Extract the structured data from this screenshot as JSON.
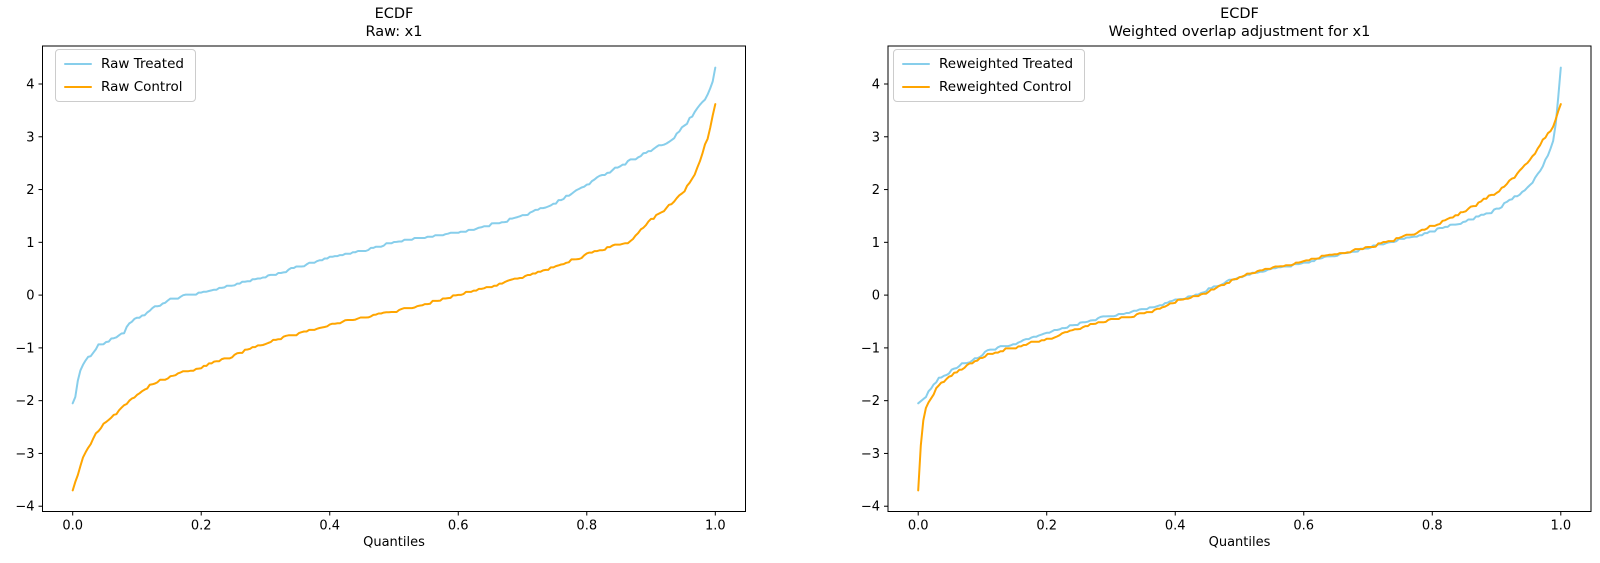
{
  "figure": {
    "background": "#ffffff"
  },
  "chart_data": [
    {
      "type": "line",
      "title_lines": [
        "ECDF",
        "Raw: x1"
      ],
      "xlabel": "Quantiles",
      "legend_position": "upper left",
      "grid": false,
      "xlim": [
        -0.047,
        1.047
      ],
      "ylim": [
        -4.1,
        4.72
      ],
      "xtick_values": [
        0,
        0.2,
        0.4,
        0.6,
        0.8,
        1.0
      ],
      "xticks": [
        "0.0",
        "0.2",
        "0.4",
        "0.6",
        "0.8",
        "1.0"
      ],
      "yticks": [
        -4,
        -3,
        -2,
        -1,
        0,
        1,
        2,
        3,
        4
      ],
      "series": [
        {
          "name": "Raw Treated",
          "color": "#87CEEB",
          "points": [
            [
              0,
              -2.05
            ],
            [
              0.005,
              -1.9
            ],
            [
              0.01,
              -1.44
            ],
            [
              0.02,
              -1.26
            ],
            [
              0.03,
              -1.1
            ],
            [
              0.04,
              -0.95
            ],
            [
              0.05,
              -0.9
            ],
            [
              0.06,
              -0.85
            ],
            [
              0.07,
              -0.77
            ],
            [
              0.08,
              -0.7
            ],
            [
              0.09,
              -0.52
            ],
            [
              0.11,
              -0.38
            ],
            [
              0.13,
              -0.22
            ],
            [
              0.15,
              -0.1
            ],
            [
              0.17,
              -0.03
            ],
            [
              0.2,
              0.04
            ],
            [
              0.23,
              0.13
            ],
            [
              0.26,
              0.22
            ],
            [
              0.3,
              0.33
            ],
            [
              0.33,
              0.45
            ],
            [
              0.36,
              0.56
            ],
            [
              0.4,
              0.7
            ],
            [
              0.44,
              0.8
            ],
            [
              0.48,
              0.93
            ],
            [
              0.5,
              1.0
            ],
            [
              0.54,
              1.07
            ],
            [
              0.58,
              1.14
            ],
            [
              0.6,
              1.18
            ],
            [
              0.64,
              1.29
            ],
            [
              0.68,
              1.43
            ],
            [
              0.7,
              1.5
            ],
            [
              0.73,
              1.64
            ],
            [
              0.76,
              1.8
            ],
            [
              0.79,
              2.02
            ],
            [
              0.83,
              2.31
            ],
            [
              0.87,
              2.56
            ],
            [
              0.91,
              2.8
            ],
            [
              0.93,
              2.91
            ],
            [
              0.95,
              3.18
            ],
            [
              0.96,
              3.33
            ],
            [
              0.98,
              3.64
            ],
            [
              0.99,
              3.85
            ],
            [
              0.997,
              4.08
            ],
            [
              1,
              4.31
            ]
          ]
        },
        {
          "name": "Raw Control",
          "color": "#FFA500",
          "points": [
            [
              0,
              -3.7
            ],
            [
              0.005,
              -3.5
            ],
            [
              0.01,
              -3.35
            ],
            [
              0.015,
              -3.07
            ],
            [
              0.03,
              -2.76
            ],
            [
              0.035,
              -2.62
            ],
            [
              0.05,
              -2.42
            ],
            [
              0.065,
              -2.27
            ],
            [
              0.08,
              -2.09
            ],
            [
              0.095,
              -1.93
            ],
            [
              0.11,
              -1.78
            ],
            [
              0.14,
              -1.6
            ],
            [
              0.16,
              -1.5
            ],
            [
              0.18,
              -1.44
            ],
            [
              0.2,
              -1.36
            ],
            [
              0.22,
              -1.28
            ],
            [
              0.24,
              -1.21
            ],
            [
              0.26,
              -1.1
            ],
            [
              0.28,
              -1.0
            ],
            [
              0.3,
              -0.92
            ],
            [
              0.33,
              -0.8
            ],
            [
              0.36,
              -0.7
            ],
            [
              0.4,
              -0.57
            ],
            [
              0.44,
              -0.45
            ],
            [
              0.48,
              -0.36
            ],
            [
              0.5,
              -0.32
            ],
            [
              0.54,
              -0.2
            ],
            [
              0.58,
              -0.07
            ],
            [
              0.6,
              0.0
            ],
            [
              0.64,
              0.12
            ],
            [
              0.68,
              0.26
            ],
            [
              0.7,
              0.33
            ],
            [
              0.73,
              0.45
            ],
            [
              0.76,
              0.58
            ],
            [
              0.79,
              0.72
            ],
            [
              0.82,
              0.85
            ],
            [
              0.85,
              0.95
            ],
            [
              0.87,
              1.02
            ],
            [
              0.88,
              1.18
            ],
            [
              0.9,
              1.42
            ],
            [
              0.92,
              1.6
            ],
            [
              0.94,
              1.82
            ],
            [
              0.96,
              2.1
            ],
            [
              0.97,
              2.35
            ],
            [
              0.98,
              2.7
            ],
            [
              0.99,
              3.05
            ],
            [
              0.995,
              3.35
            ],
            [
              1,
              3.62
            ]
          ]
        }
      ]
    },
    {
      "type": "line",
      "title_lines": [
        "ECDF",
        "Weighted overlap adjustment for x1"
      ],
      "xlabel": "Quantiles",
      "legend_position": "upper left",
      "grid": false,
      "xlim": [
        -0.047,
        1.047
      ],
      "ylim": [
        -4.1,
        4.72
      ],
      "xtick_values": [
        0,
        0.2,
        0.4,
        0.6,
        0.8,
        1.0
      ],
      "xticks": [
        "0.0",
        "0.2",
        "0.4",
        "0.6",
        "0.8",
        "1.0"
      ],
      "yticks": [
        -4,
        -3,
        -2,
        -1,
        0,
        1,
        2,
        3,
        4
      ],
      "series": [
        {
          "name": "Reweighted Treated",
          "color": "#87CEEB",
          "points": [
            [
              0,
              -2.05
            ],
            [
              0.01,
              -1.95
            ],
            [
              0.02,
              -1.75
            ],
            [
              0.03,
              -1.6
            ],
            [
              0.05,
              -1.45
            ],
            [
              0.07,
              -1.3
            ],
            [
              0.09,
              -1.2
            ],
            [
              0.11,
              -1.05
            ],
            [
              0.13,
              -0.98
            ],
            [
              0.15,
              -0.92
            ],
            [
              0.17,
              -0.85
            ],
            [
              0.2,
              -0.73
            ],
            [
              0.23,
              -0.62
            ],
            [
              0.26,
              -0.5
            ],
            [
              0.29,
              -0.42
            ],
            [
              0.32,
              -0.37
            ],
            [
              0.35,
              -0.28
            ],
            [
              0.38,
              -0.18
            ],
            [
              0.4,
              -0.1
            ],
            [
              0.42,
              -0.05
            ],
            [
              0.45,
              0.1
            ],
            [
              0.48,
              0.25
            ],
            [
              0.5,
              0.33
            ],
            [
              0.52,
              0.4
            ],
            [
              0.55,
              0.48
            ],
            [
              0.58,
              0.55
            ],
            [
              0.6,
              0.6
            ],
            [
              0.63,
              0.7
            ],
            [
              0.66,
              0.78
            ],
            [
              0.7,
              0.89
            ],
            [
              0.73,
              0.98
            ],
            [
              0.76,
              1.08
            ],
            [
              0.79,
              1.17
            ],
            [
              0.82,
              1.28
            ],
            [
              0.85,
              1.38
            ],
            [
              0.88,
              1.52
            ],
            [
              0.9,
              1.62
            ],
            [
              0.92,
              1.78
            ],
            [
              0.94,
              1.95
            ],
            [
              0.95,
              2.05
            ],
            [
              0.96,
              2.2
            ],
            [
              0.97,
              2.4
            ],
            [
              0.98,
              2.65
            ],
            [
              0.99,
              3.0
            ],
            [
              0.995,
              3.6
            ],
            [
              1,
              4.31
            ]
          ]
        },
        {
          "name": "Reweighted Control",
          "color": "#FFA500",
          "points": [
            [
              0,
              -3.7
            ],
            [
              0.003,
              -3.0
            ],
            [
              0.006,
              -2.55
            ],
            [
              0.01,
              -2.2
            ],
            [
              0.02,
              -1.95
            ],
            [
              0.03,
              -1.75
            ],
            [
              0.05,
              -1.52
            ],
            [
              0.07,
              -1.38
            ],
            [
              0.09,
              -1.25
            ],
            [
              0.11,
              -1.12
            ],
            [
              0.13,
              -1.05
            ],
            [
              0.15,
              -1.0
            ],
            [
              0.17,
              -0.92
            ],
            [
              0.2,
              -0.85
            ],
            [
              0.23,
              -0.72
            ],
            [
              0.26,
              -0.6
            ],
            [
              0.29,
              -0.5
            ],
            [
              0.32,
              -0.44
            ],
            [
              0.35,
              -0.35
            ],
            [
              0.38,
              -0.25
            ],
            [
              0.4,
              -0.12
            ],
            [
              0.42,
              -0.06
            ],
            [
              0.45,
              0.05
            ],
            [
              0.48,
              0.22
            ],
            [
              0.5,
              0.33
            ],
            [
              0.52,
              0.42
            ],
            [
              0.55,
              0.5
            ],
            [
              0.58,
              0.57
            ],
            [
              0.6,
              0.63
            ],
            [
              0.63,
              0.73
            ],
            [
              0.66,
              0.8
            ],
            [
              0.7,
              0.9
            ],
            [
              0.73,
              1.0
            ],
            [
              0.76,
              1.12
            ],
            [
              0.79,
              1.25
            ],
            [
              0.82,
              1.42
            ],
            [
              0.85,
              1.58
            ],
            [
              0.88,
              1.8
            ],
            [
              0.9,
              1.95
            ],
            [
              0.92,
              2.15
            ],
            [
              0.94,
              2.4
            ],
            [
              0.95,
              2.55
            ],
            [
              0.96,
              2.7
            ],
            [
              0.97,
              2.9
            ],
            [
              0.98,
              3.05
            ],
            [
              0.99,
              3.25
            ],
            [
              0.995,
              3.45
            ],
            [
              1,
              3.62
            ]
          ]
        }
      ]
    }
  ]
}
